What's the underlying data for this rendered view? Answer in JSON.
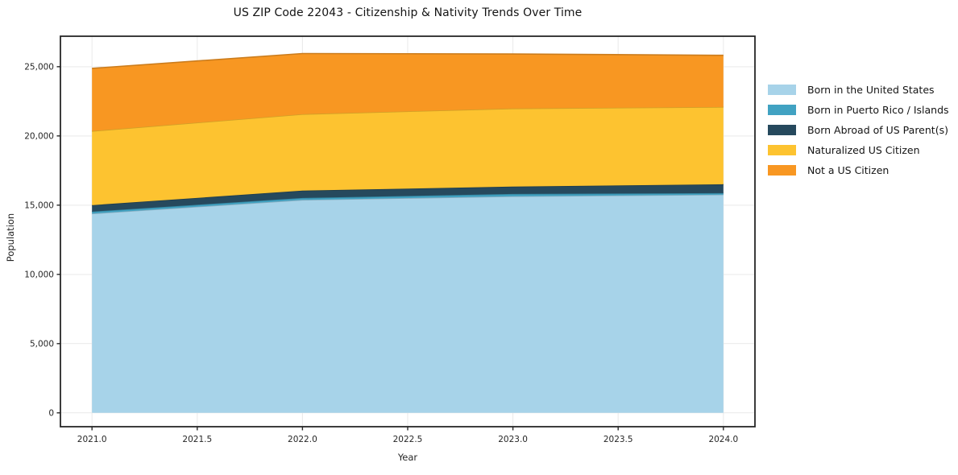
{
  "chart_data": {
    "type": "area",
    "stacked": true,
    "title": "US ZIP Code 22043 - Citizenship & Nativity Trends Over Time",
    "xlabel": "Year",
    "ylabel": "Population",
    "x": [
      2021,
      2022,
      2023,
      2024
    ],
    "series": [
      {
        "name": "Born in the United States",
        "color": "#A7D3E9",
        "values": [
          14390,
          15380,
          15640,
          15760
        ]
      },
      {
        "name": "Born in Puerto Rico / Islands",
        "color": "#41A2C2",
        "values": [
          145,
          140,
          170,
          110
        ]
      },
      {
        "name": "Born Abroad of US Parent(s)",
        "color": "#26495D",
        "values": [
          465,
          530,
          530,
          640
        ]
      },
      {
        "name": "Naturalized US Citizen",
        "color": "#FDC330",
        "values": [
          5350,
          5520,
          5640,
          5580
        ]
      },
      {
        "name": "Not a US Citizen",
        "color": "#F89722",
        "values": [
          4530,
          4380,
          3940,
          3730
        ]
      }
    ],
    "totals": [
      24880,
      25950,
      25920,
      25820
    ],
    "xlim": [
      2020.85,
      2024.15
    ],
    "ylim": [
      -1000,
      27200
    ],
    "xticks": [
      {
        "v": 2021.0,
        "label": "2021.0"
      },
      {
        "v": 2021.5,
        "label": "2021.5"
      },
      {
        "v": 2022.0,
        "label": "2022.0"
      },
      {
        "v": 2022.5,
        "label": "2022.5"
      },
      {
        "v": 2023.0,
        "label": "2023.0"
      },
      {
        "v": 2023.5,
        "label": "2023.5"
      },
      {
        "v": 2024.0,
        "label": "2024.0"
      }
    ],
    "yticks": [
      {
        "v": 0,
        "label": "0"
      },
      {
        "v": 5000,
        "label": "5,000"
      },
      {
        "v": 10000,
        "label": "10,000"
      },
      {
        "v": 15000,
        "label": "15,000"
      },
      {
        "v": 20000,
        "label": "20,000"
      },
      {
        "v": 25000,
        "label": "25,000"
      }
    ],
    "grid": true,
    "legend_position": "right",
    "colors": {
      "grid": "#E9E9E9",
      "spine": "#262626",
      "tick_text": "#262626",
      "background": "#FFFFFF"
    }
  }
}
